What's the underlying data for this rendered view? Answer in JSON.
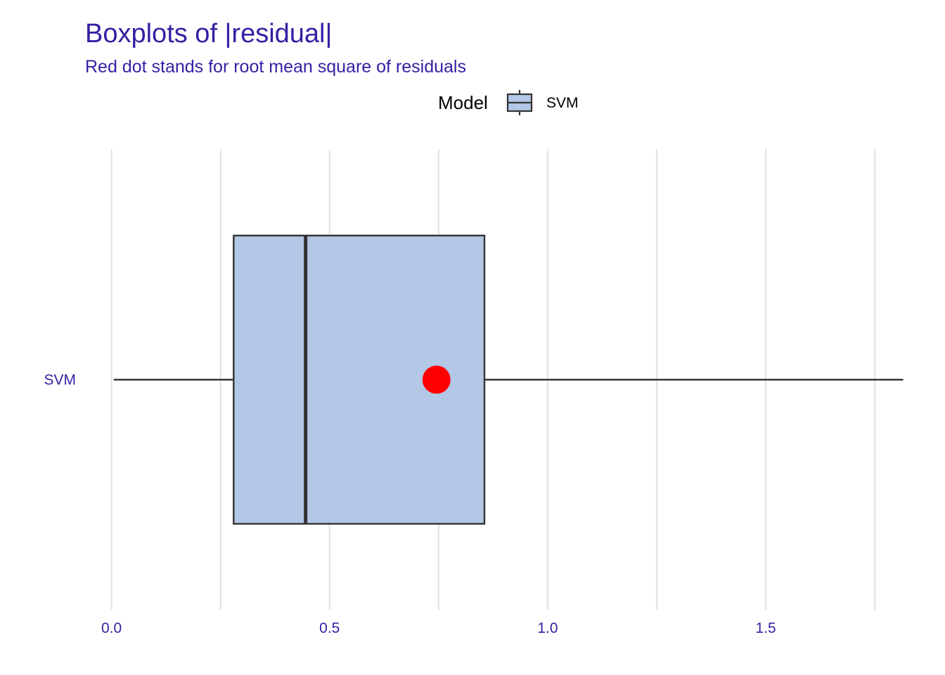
{
  "chart_data": {
    "type": "boxplot",
    "title": "Boxplots of |residual|",
    "subtitle": "Red dot stands for root mean square of residuals",
    "orientation": "horizontal",
    "legend": {
      "title": "Model",
      "placement": "top",
      "entries": [
        "SVM"
      ]
    },
    "x_axis": {
      "range": [
        -0.03,
        1.84
      ],
      "ticks": [
        0.0,
        0.5,
        1.0,
        1.5
      ],
      "tick_labels": [
        "0.0",
        "0.5",
        "1.0",
        "1.5"
      ],
      "minor_gridlines": [
        0.25,
        0.75,
        1.25,
        1.75
      ],
      "grid": true
    },
    "categories": [
      "SVM"
    ],
    "series": [
      {
        "name": "SVM",
        "min": 0.005,
        "q1": 0.28,
        "median": 0.445,
        "q3": 0.855,
        "max": 1.815,
        "rmse": 0.745
      }
    ],
    "colors": {
      "box_fill": "#b3c7e6",
      "box_border": "#333333",
      "rmse_dot": "#ff0000",
      "text": "#371ea3",
      "grid": "#e4e4e4"
    }
  }
}
